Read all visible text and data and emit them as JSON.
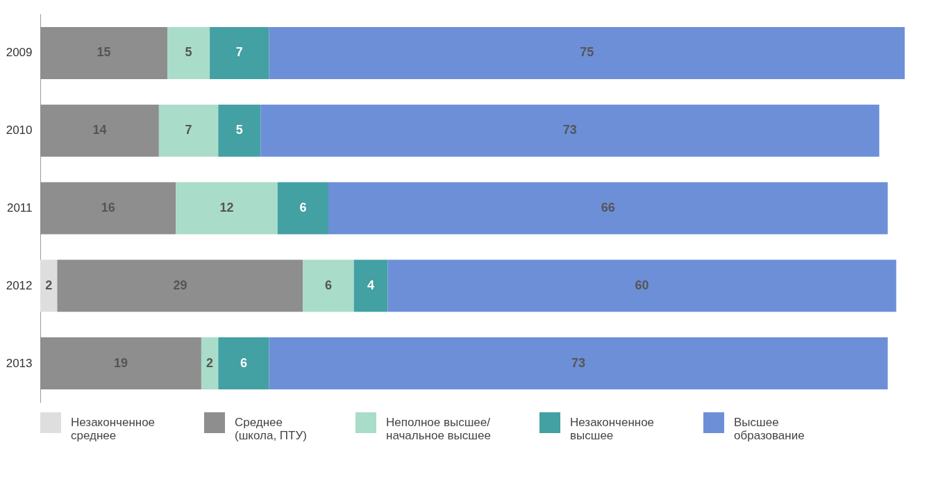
{
  "chart_data": {
    "type": "bar",
    "orientation": "horizontal",
    "stacked": true,
    "data_labels": true,
    "legend": "bottom",
    "tick_labels": "y",
    "categories": [
      "2009",
      "2010",
      "2011",
      "2012",
      "2013"
    ],
    "xlim": [
      0,
      102
    ],
    "series": [
      {
        "name": "Незаконченное\nсреднее",
        "color": "#dedede",
        "values": [
          null,
          null,
          null,
          2,
          null
        ]
      },
      {
        "name": "Среднее\n(школа, ПТУ)",
        "color": "#8e8e8e",
        "values": [
          15,
          14,
          16,
          29,
          19
        ]
      },
      {
        "name": "Неполное высшее/\nначальное высшее",
        "color": "#a9dcc9",
        "values": [
          5,
          7,
          12,
          6,
          2
        ]
      },
      {
        "name": "Незаконченное\nвысшее",
        "color": "#43a0a3",
        "values": [
          7,
          5,
          6,
          4,
          6
        ]
      },
      {
        "name": "Высшее\nобразование",
        "color": "#6d8fd8",
        "values": [
          75,
          73,
          66,
          60,
          73
        ]
      }
    ]
  }
}
